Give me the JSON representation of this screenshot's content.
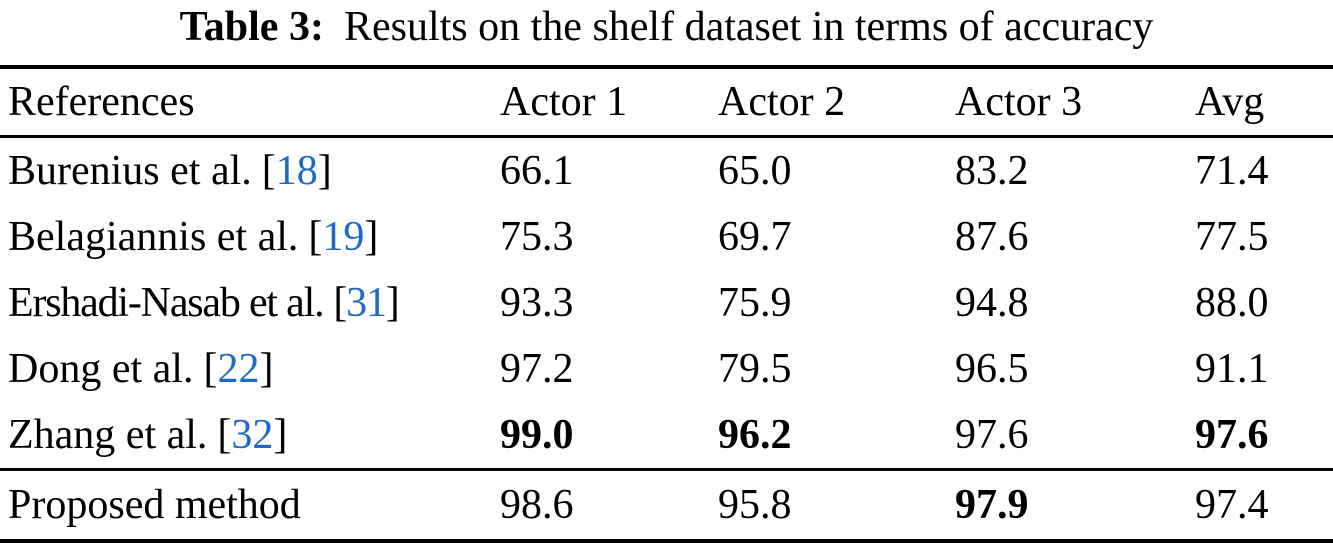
{
  "caption": {
    "label": "Table 3:",
    "text": "Results on the shelf dataset in terms of accuracy"
  },
  "accent_color": "#1e6bc6",
  "table": {
    "columns": [
      "References",
      "Actor 1",
      "Actor 2",
      "Actor 3",
      "Avg"
    ],
    "rows": [
      {
        "reference": "Burenius et al.",
        "citation": "18",
        "values": [
          "66.1",
          "65.0",
          "83.2",
          "71.4"
        ],
        "bold": [
          false,
          false,
          false,
          false
        ]
      },
      {
        "reference": "Belagiannis et al.",
        "citation": "19",
        "values": [
          "75.3",
          "69.7",
          "87.6",
          "77.5"
        ],
        "bold": [
          false,
          false,
          false,
          false
        ]
      },
      {
        "reference": "Ershadi-Nasab et al.",
        "citation": "31",
        "values": [
          "93.3",
          "75.9",
          "94.8",
          "88.0"
        ],
        "bold": [
          false,
          false,
          false,
          false
        ]
      },
      {
        "reference": "Dong et al.",
        "citation": "22",
        "values": [
          "97.2",
          "79.5",
          "96.5",
          "91.1"
        ],
        "bold": [
          false,
          false,
          false,
          false
        ]
      },
      {
        "reference": "Zhang et al.",
        "citation": "32",
        "values": [
          "99.0",
          "96.2",
          "97.6",
          "97.6"
        ],
        "bold": [
          true,
          true,
          false,
          true
        ]
      },
      {
        "reference": "Proposed method",
        "citation": null,
        "values": [
          "98.6",
          "95.8",
          "97.9",
          "97.4"
        ],
        "bold": [
          false,
          false,
          true,
          false
        ]
      }
    ],
    "bracket_open": "[",
    "bracket_close": "]"
  }
}
